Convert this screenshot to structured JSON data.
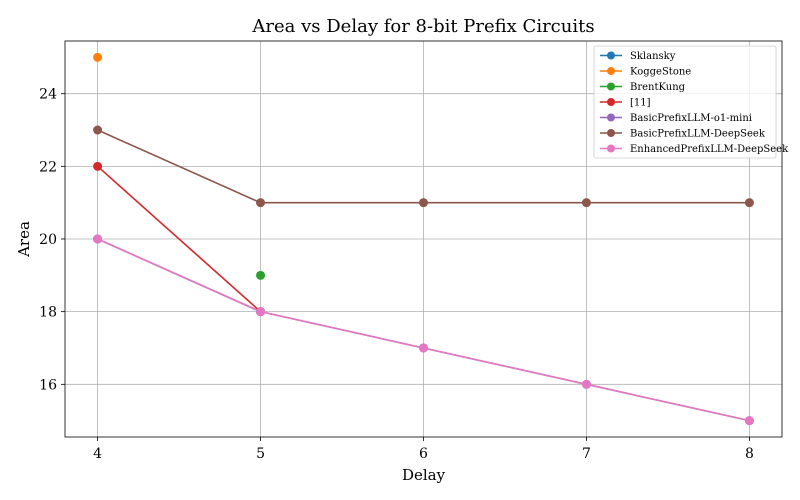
{
  "chart_data": {
    "type": "line",
    "title": "Area vs Delay for 8-bit Prefix Circuits",
    "xlabel": "Delay",
    "ylabel": "Area",
    "xlim": [
      3.8,
      8.2
    ],
    "ylim": [
      14.55,
      25.45
    ],
    "xticks": [
      4,
      5,
      6,
      7,
      8
    ],
    "yticks": [
      16,
      18,
      20,
      22,
      24
    ],
    "grid": true,
    "legend_position": "top-right",
    "series": [
      {
        "name": "Sklansky",
        "color": "#1f77b4",
        "x": [
          4
        ],
        "y": [
          20
        ]
      },
      {
        "name": "KoggeStone",
        "color": "#ff7f0e",
        "x": [
          4
        ],
        "y": [
          25
        ]
      },
      {
        "name": "BrentKung",
        "color": "#2ca02c",
        "x": [
          5
        ],
        "y": [
          19
        ]
      },
      {
        "name": "[11]",
        "color": "#d62728",
        "x": [
          4,
          5
        ],
        "y": [
          22,
          18
        ]
      },
      {
        "name": "BasicPrefixLLM-o1-mini",
        "color": "#9467bd",
        "x": [
          4,
          5,
          6,
          7,
          8
        ],
        "y": [
          20,
          18,
          17,
          16,
          15
        ]
      },
      {
        "name": "BasicPrefixLLM-DeepSeek",
        "color": "#8c564b",
        "x": [
          4,
          5,
          6,
          7,
          8
        ],
        "y": [
          23,
          21,
          21,
          21,
          21
        ]
      },
      {
        "name": "EnhancedPrefixLLM-DeepSeek",
        "color": "#e377c2",
        "x": [
          4,
          5,
          6,
          7,
          8
        ],
        "y": [
          20,
          18,
          17,
          16,
          15
        ]
      }
    ]
  }
}
